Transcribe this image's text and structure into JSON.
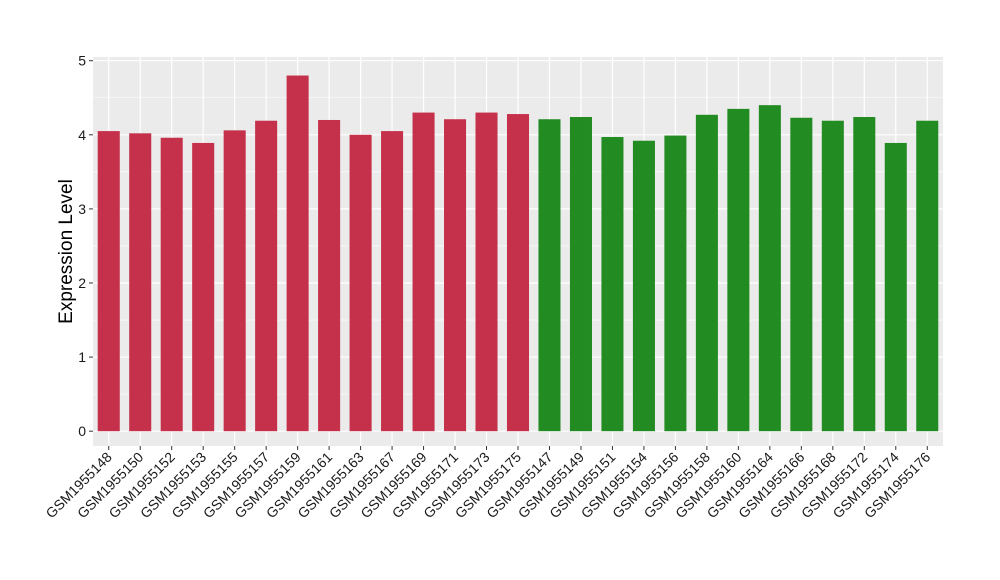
{
  "chart_data": {
    "type": "bar",
    "title": "",
    "xlabel": "",
    "ylabel": "Expression Level",
    "ylim": [
      -0.2,
      5.05
    ],
    "yticks": [
      0,
      1,
      2,
      3,
      4,
      5
    ],
    "grid": true,
    "legend": "none",
    "categories": [
      "GSM1955148",
      "GSM1955150",
      "GSM1955152",
      "GSM1955153",
      "GSM1955155",
      "GSM1955157",
      "GSM1955159",
      "GSM1955161",
      "GSM1955163",
      "GSM1955167",
      "GSM1955169",
      "GSM1955171",
      "GSM1955173",
      "GSM1955175",
      "GSM1955147",
      "GSM1955149",
      "GSM1955151",
      "GSM1955154",
      "GSM1955156",
      "GSM1955158",
      "GSM1955160",
      "GSM1955164",
      "GSM1955166",
      "GSM1955168",
      "GSM1955172",
      "GSM1955174",
      "GSM1955176"
    ],
    "values": [
      4.05,
      4.02,
      3.96,
      3.89,
      4.06,
      4.19,
      4.8,
      4.2,
      4.0,
      4.05,
      4.3,
      4.21,
      4.3,
      4.28,
      4.21,
      4.24,
      3.97,
      3.92,
      3.99,
      4.27,
      4.35,
      4.4,
      4.23,
      4.19,
      4.24,
      3.89,
      4.19
    ],
    "bar_colors": [
      "#c5304a",
      "#c5304a",
      "#c5304a",
      "#c5304a",
      "#c5304a",
      "#c5304a",
      "#c5304a",
      "#c5304a",
      "#c5304a",
      "#c5304a",
      "#c5304a",
      "#c5304a",
      "#c5304a",
      "#c5304a",
      "#228b22",
      "#228b22",
      "#228b22",
      "#228b22",
      "#228b22",
      "#228b22",
      "#228b22",
      "#228b22",
      "#228b22",
      "#228b22",
      "#228b22",
      "#228b22",
      "#228b22"
    ],
    "panel_background": "#ebebeb",
    "grid_color": "#ffffff"
  }
}
